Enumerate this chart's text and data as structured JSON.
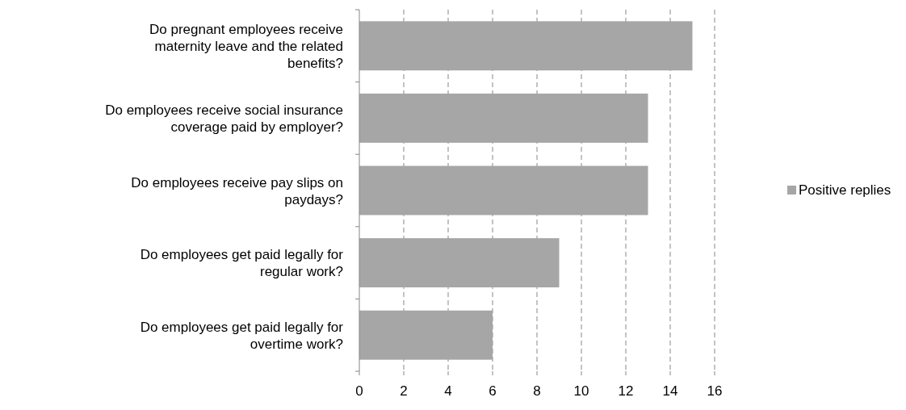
{
  "chart_data": {
    "type": "bar",
    "orientation": "horizontal",
    "categories": [
      "Do pregnant employees receive\nmaternity leave and the related\nbenefits?",
      "Do employees receive social insurance\ncoverage paid by employer?",
      "Do employees receive pay slips on\npaydays?",
      "Do employees get paid legally for\nregular work?",
      "Do employees get paid legally for\novertime work?"
    ],
    "series": [
      {
        "name": "Positive replies",
        "color": "#a6a6a6",
        "values": [
          15,
          13,
          13,
          9,
          6
        ]
      }
    ],
    "xlim": [
      0,
      16
    ],
    "xticks": [
      0,
      2,
      4,
      6,
      8,
      10,
      12,
      14,
      16
    ],
    "grid": "x",
    "legend": "right"
  }
}
